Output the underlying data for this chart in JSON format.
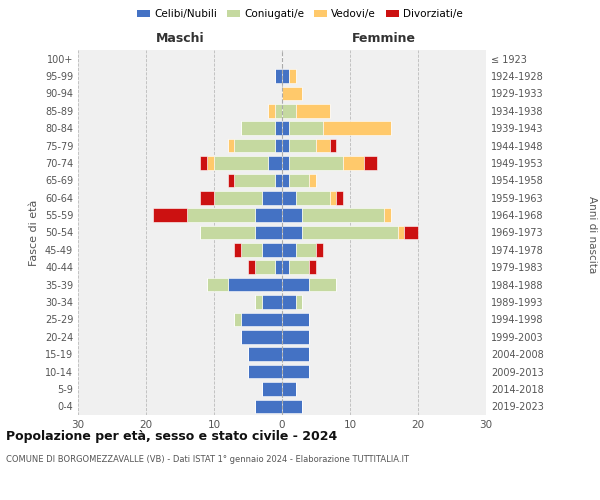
{
  "age_groups": [
    "0-4",
    "5-9",
    "10-14",
    "15-19",
    "20-24",
    "25-29",
    "30-34",
    "35-39",
    "40-44",
    "45-49",
    "50-54",
    "55-59",
    "60-64",
    "65-69",
    "70-74",
    "75-79",
    "80-84",
    "85-89",
    "90-94",
    "95-99",
    "100+"
  ],
  "birth_years": [
    "2019-2023",
    "2014-2018",
    "2009-2013",
    "2004-2008",
    "1999-2003",
    "1994-1998",
    "1989-1993",
    "1984-1988",
    "1979-1983",
    "1974-1978",
    "1969-1973",
    "1964-1968",
    "1959-1963",
    "1954-1958",
    "1949-1953",
    "1944-1948",
    "1939-1943",
    "1934-1938",
    "1929-1933",
    "1924-1928",
    "≤ 1923"
  ],
  "maschi": {
    "celibi": [
      4,
      3,
      5,
      5,
      6,
      6,
      3,
      8,
      1,
      3,
      4,
      4,
      3,
      1,
      2,
      1,
      1,
      0,
      0,
      1,
      0
    ],
    "coniugati": [
      0,
      0,
      0,
      0,
      0,
      1,
      1,
      3,
      3,
      3,
      8,
      10,
      7,
      6,
      8,
      6,
      5,
      1,
      0,
      0,
      0
    ],
    "vedovi": [
      0,
      0,
      0,
      0,
      0,
      0,
      0,
      0,
      0,
      0,
      0,
      0,
      0,
      0,
      1,
      1,
      0,
      1,
      0,
      0,
      0
    ],
    "divorziati": [
      0,
      0,
      0,
      0,
      0,
      0,
      0,
      0,
      1,
      1,
      0,
      5,
      2,
      1,
      1,
      0,
      0,
      0,
      0,
      0,
      0
    ]
  },
  "femmine": {
    "nubili": [
      3,
      2,
      4,
      4,
      4,
      4,
      2,
      4,
      1,
      2,
      3,
      3,
      2,
      1,
      1,
      1,
      1,
      0,
      0,
      1,
      0
    ],
    "coniugate": [
      0,
      0,
      0,
      0,
      0,
      0,
      1,
      4,
      3,
      3,
      14,
      12,
      5,
      3,
      8,
      4,
      5,
      2,
      0,
      0,
      0
    ],
    "vedove": [
      0,
      0,
      0,
      0,
      0,
      0,
      0,
      0,
      0,
      0,
      1,
      1,
      1,
      1,
      3,
      2,
      10,
      5,
      3,
      1,
      0
    ],
    "divorziate": [
      0,
      0,
      0,
      0,
      0,
      0,
      0,
      0,
      1,
      1,
      2,
      0,
      1,
      0,
      2,
      1,
      0,
      0,
      0,
      0,
      0
    ]
  },
  "colors": {
    "celibi": "#4472C4",
    "coniugati": "#c5d9a0",
    "vedovi": "#ffc96b",
    "divorziati": "#cc1111"
  },
  "xlim": 30,
  "title": "Popolazione per età, sesso e stato civile - 2024",
  "subtitle": "COMUNE DI BORGOMEZZAVALLE (VB) - Dati ISTAT 1° gennaio 2024 - Elaborazione TUTTITALIA.IT",
  "ylabel_left": "Fasce di età",
  "ylabel_right": "Anni di nascita",
  "xlabel_maschi": "Maschi",
  "xlabel_femmine": "Femmine",
  "legend_labels": [
    "Celibi/Nubili",
    "Coniugati/e",
    "Vedovi/e",
    "Divorziati/e"
  ],
  "bg_color": "#ffffff",
  "plot_bg": "#f0f0f0"
}
